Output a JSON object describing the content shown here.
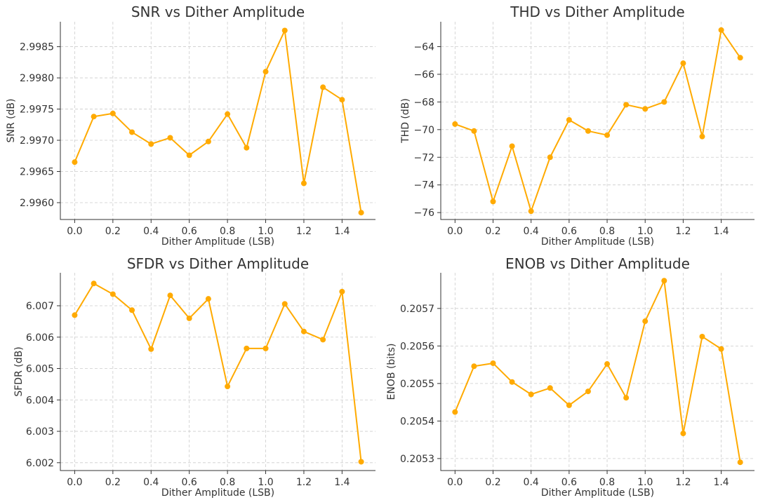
{
  "chart_data": [
    {
      "id": "snr",
      "type": "line",
      "title": "SNR vs Dither Amplitude",
      "xlabel": "Dither Amplitude (LSB)",
      "ylabel": "SNR (dB)",
      "color": "#FFAA00",
      "x": [
        0.0,
        0.1,
        0.2,
        0.3,
        0.4,
        0.5,
        0.6,
        0.7,
        0.8,
        0.9,
        1.0,
        1.1,
        1.2,
        1.3,
        1.4,
        1.5
      ],
      "values": [
        2.99665,
        2.99738,
        2.99743,
        2.99713,
        2.99694,
        2.99704,
        2.99676,
        2.99698,
        2.99742,
        2.99688,
        2.9981,
        2.99876,
        2.99631,
        2.99785,
        2.99765,
        2.99584
      ],
      "xlim": [
        -0.075,
        1.575
      ],
      "ylim": [
        2.99573,
        2.9989
      ],
      "xticks": [
        0.0,
        0.2,
        0.4,
        0.6,
        0.8,
        1.0,
        1.2,
        1.4
      ],
      "xtick_labels": [
        "0.0",
        "0.2",
        "0.4",
        "0.6",
        "0.8",
        "1.0",
        "1.2",
        "1.4"
      ],
      "yticks": [
        2.996,
        2.9965,
        2.997,
        2.9975,
        2.998,
        2.9985
      ],
      "ytick_labels": [
        "2.9960",
        "2.9965",
        "2.9970",
        "2.9975",
        "2.9980",
        "2.9985"
      ],
      "grid": true
    },
    {
      "id": "thd",
      "type": "line",
      "title": "THD vs Dither Amplitude",
      "xlabel": "Dither Amplitude (LSB)",
      "ylabel": "THD (dB)",
      "color": "#FFAA00",
      "x": [
        0.0,
        0.1,
        0.2,
        0.3,
        0.4,
        0.5,
        0.6,
        0.7,
        0.8,
        0.9,
        1.0,
        1.1,
        1.2,
        1.3,
        1.4,
        1.5
      ],
      "values": [
        -69.6,
        -70.1,
        -75.2,
        -71.2,
        -75.9,
        -72.0,
        -69.3,
        -70.1,
        -70.4,
        -68.2,
        -68.5,
        -68.0,
        -65.2,
        -70.5,
        -62.8,
        -64.8
      ],
      "xlim": [
        -0.075,
        1.575
      ],
      "ylim": [
        -76.5,
        -62.2
      ],
      "xticks": [
        0.0,
        0.2,
        0.4,
        0.6,
        0.8,
        1.0,
        1.2,
        1.4
      ],
      "xtick_labels": [
        "0.0",
        "0.2",
        "0.4",
        "0.6",
        "0.8",
        "1.0",
        "1.2",
        "1.4"
      ],
      "yticks": [
        -76,
        -74,
        -72,
        -70,
        -68,
        -66,
        -64
      ],
      "ytick_labels": [
        "−76",
        "−74",
        "−72",
        "−70",
        "−68",
        "−66",
        "−64"
      ],
      "grid": true
    },
    {
      "id": "sfdr",
      "type": "line",
      "title": "SFDR vs Dither Amplitude",
      "xlabel": "Dither Amplitude (LSB)",
      "ylabel": "SFDR (dB)",
      "color": "#FFAA00",
      "x": [
        0.0,
        0.1,
        0.2,
        0.3,
        0.4,
        0.5,
        0.6,
        0.7,
        0.8,
        0.9,
        1.0,
        1.1,
        1.2,
        1.3,
        1.4,
        1.5
      ],
      "values": [
        6.0067,
        6.00771,
        6.00737,
        6.00686,
        6.00562,
        6.00733,
        6.0066,
        6.00722,
        6.00443,
        6.00564,
        6.00564,
        6.00706,
        6.00618,
        6.00592,
        6.00745,
        6.00203
      ],
      "xlim": [
        -0.075,
        1.575
      ],
      "ylim": [
        6.00175,
        6.00805
      ],
      "xticks": [
        0.0,
        0.2,
        0.4,
        0.6,
        0.8,
        1.0,
        1.2,
        1.4
      ],
      "xtick_labels": [
        "0.0",
        "0.2",
        "0.4",
        "0.6",
        "0.8",
        "1.0",
        "1.2",
        "1.4"
      ],
      "yticks": [
        6.002,
        6.003,
        6.004,
        6.005,
        6.006,
        6.007
      ],
      "ytick_labels": [
        "6.002",
        "6.003",
        "6.004",
        "6.005",
        "6.006",
        "6.007"
      ],
      "grid": true
    },
    {
      "id": "enob",
      "type": "line",
      "title": "ENOB vs Dither Amplitude",
      "xlabel": "Dither Amplitude (LSB)",
      "ylabel": "ENOB (bits)",
      "color": "#FFAA00",
      "x": [
        0.0,
        0.1,
        0.2,
        0.3,
        0.4,
        0.5,
        0.6,
        0.7,
        0.8,
        0.9,
        1.0,
        1.1,
        1.2,
        1.3,
        1.4,
        1.5
      ],
      "values": [
        0.205424,
        0.205546,
        0.205554,
        0.205504,
        0.205471,
        0.205488,
        0.205442,
        0.205479,
        0.205552,
        0.205462,
        0.205666,
        0.205774,
        0.205367,
        0.205625,
        0.205592,
        0.20529
      ],
      "xlim": [
        -0.075,
        1.575
      ],
      "ylim": [
        0.205268,
        0.205795
      ],
      "xticks": [
        0.0,
        0.2,
        0.4,
        0.6,
        0.8,
        1.0,
        1.2,
        1.4
      ],
      "xtick_labels": [
        "0.0",
        "0.2",
        "0.4",
        "0.6",
        "0.8",
        "1.0",
        "1.2",
        "1.4"
      ],
      "yticks": [
        0.2053,
        0.2054,
        0.2055,
        0.2056,
        0.2057
      ],
      "ytick_labels": [
        "0.2053",
        "0.2054",
        "0.2055",
        "0.2056",
        "0.2057"
      ],
      "grid": true
    }
  ]
}
